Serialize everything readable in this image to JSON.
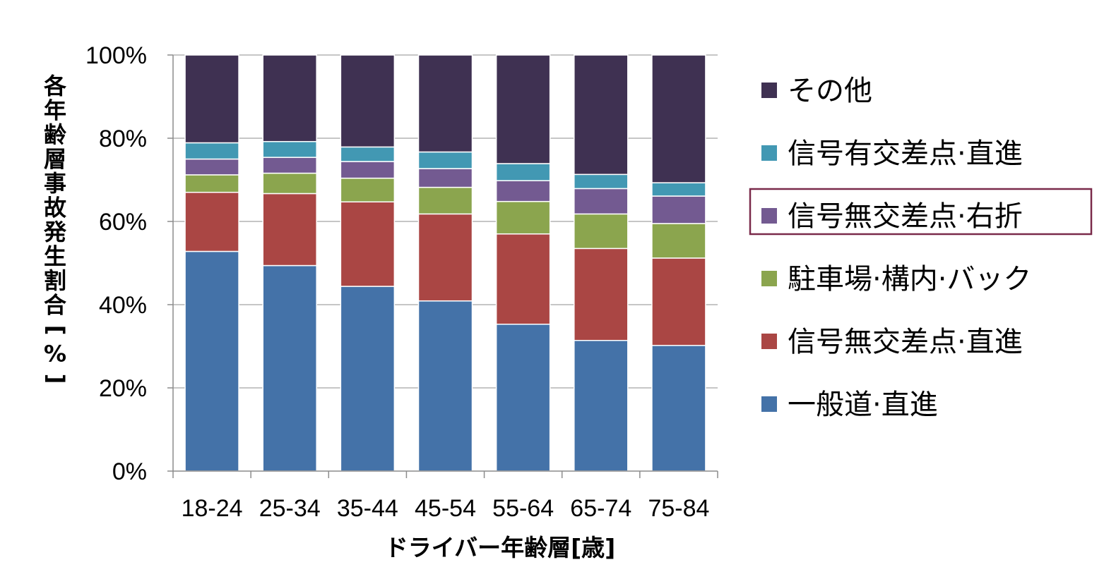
{
  "chart_data": {
    "type": "bar",
    "stacked": true,
    "percent": true,
    "xlabel": "ドライバー年齢層[歳]",
    "ylabel": "各年齢層事故発生割合[%]",
    "ylim": [
      0,
      100
    ],
    "yticks": [
      "0%",
      "20%",
      "40%",
      "60%",
      "80%",
      "100%"
    ],
    "grid": true,
    "legend_position": "right",
    "highlighted_series": "信号無交差点·右折",
    "categories": [
      "18-24",
      "25-34",
      "35-44",
      "45-54",
      "55-64",
      "65-74",
      "75-84"
    ],
    "series": [
      {
        "name": "一般道·直進",
        "color": "#4472A8",
        "values": [
          52.8,
          49.4,
          44.4,
          40.9,
          35.3,
          31.4,
          30.2
        ]
      },
      {
        "name": "信号無交差点·直進",
        "color": "#AA4644",
        "values": [
          14.2,
          17.3,
          20.3,
          20.9,
          21.7,
          22.1,
          21.0
        ]
      },
      {
        "name": "駐車場·構内·バック",
        "color": "#8BA54E",
        "values": [
          4.2,
          4.9,
          5.7,
          6.4,
          7.8,
          8.3,
          8.3
        ]
      },
      {
        "name": "信号無交差点·右折",
        "color": "#735A91",
        "values": [
          3.8,
          3.8,
          4.0,
          4.5,
          5.0,
          6.1,
          6.6
        ]
      },
      {
        "name": "信号有交差点·直進",
        "color": "#4298B3",
        "values": [
          3.9,
          3.8,
          3.5,
          4.0,
          4.1,
          3.4,
          3.2
        ]
      },
      {
        "name": "その他",
        "color": "#3F3152",
        "values": [
          21.1,
          20.8,
          22.1,
          23.3,
          26.1,
          28.7,
          30.7
        ]
      }
    ]
  }
}
